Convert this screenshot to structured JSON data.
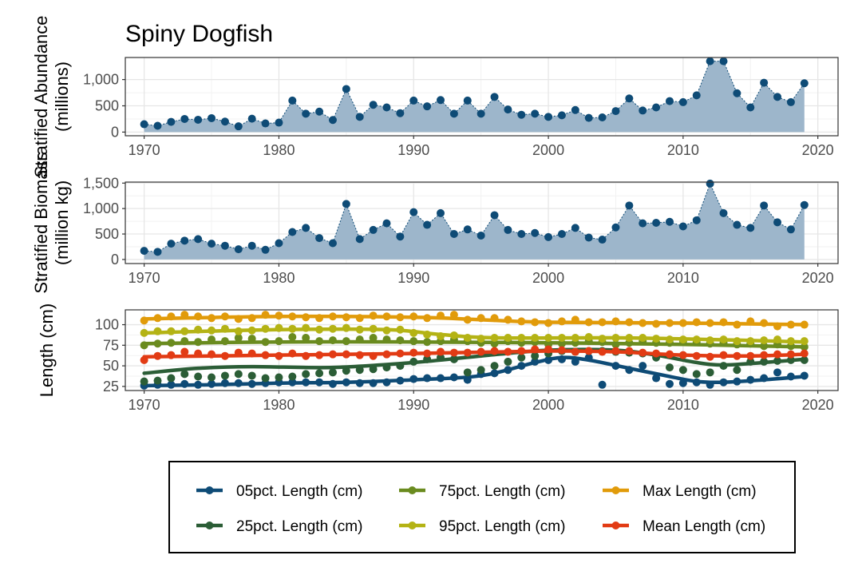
{
  "chart_data": {
    "title": "Spiny Dogfish",
    "panels": [
      {
        "type": "area",
        "ylabel_lines": [
          "Stratified Abundance",
          "(millions)"
        ],
        "x_ticks": [
          1970,
          1980,
          1990,
          2000,
          2010,
          2020
        ],
        "y_ticks": [
          0,
          500,
          1000
        ],
        "y_tick_labels": [
          "0",
          "500",
          "1,000"
        ],
        "xlim": [
          1968.6,
          2021.5
        ],
        "ylim": [
          -70,
          1420
        ],
        "x": [
          1970,
          1971,
          1972,
          1973,
          1974,
          1975,
          1976,
          1977,
          1978,
          1979,
          1980,
          1981,
          1982,
          1983,
          1984,
          1985,
          1986,
          1987,
          1988,
          1989,
          1990,
          1991,
          1992,
          1993,
          1994,
          1995,
          1996,
          1997,
          1998,
          1999,
          2000,
          2001,
          2002,
          2003,
          2004,
          2005,
          2006,
          2007,
          2008,
          2009,
          2010,
          2011,
          2012,
          2013,
          2014,
          2015,
          2016,
          2017,
          2018,
          2019
        ],
        "values": [
          150,
          120,
          195,
          250,
          235,
          265,
          200,
          110,
          255,
          165,
          180,
          600,
          350,
          390,
          230,
          820,
          290,
          520,
          470,
          360,
          600,
          490,
          610,
          350,
          600,
          350,
          670,
          430,
          330,
          350,
          290,
          320,
          420,
          270,
          280,
          400,
          640,
          410,
          470,
          590,
          570,
          700,
          1350,
          1350,
          740,
          470,
          940,
          670,
          570,
          930
        ]
      },
      {
        "type": "area",
        "ylabel_lines": [
          "Stratified Biomass",
          "(million kg)"
        ],
        "x_ticks": [
          1970,
          1980,
          1990,
          2000,
          2010,
          2020
        ],
        "y_ticks": [
          0,
          500,
          1000,
          1500
        ],
        "y_tick_labels": [
          "0",
          "500",
          "1,000",
          "1,500"
        ],
        "xlim": [
          1968.6,
          2021.5
        ],
        "ylim": [
          -80,
          1520
        ],
        "x": [
          1970,
          1971,
          1972,
          1973,
          1974,
          1975,
          1976,
          1977,
          1978,
          1979,
          1980,
          1981,
          1982,
          1983,
          1984,
          1985,
          1986,
          1987,
          1988,
          1989,
          1990,
          1991,
          1992,
          1993,
          1994,
          1995,
          1996,
          1997,
          1998,
          1999,
          2000,
          2001,
          2002,
          2003,
          2004,
          2005,
          2006,
          2007,
          2008,
          2009,
          2010,
          2011,
          2012,
          2013,
          2014,
          2015,
          2016,
          2017,
          2018,
          2019
        ],
        "values": [
          170,
          150,
          310,
          370,
          400,
          310,
          270,
          200,
          270,
          190,
          320,
          540,
          620,
          420,
          320,
          1090,
          400,
          580,
          710,
          450,
          930,
          680,
          910,
          500,
          590,
          470,
          870,
          580,
          500,
          520,
          440,
          500,
          620,
          430,
          390,
          630,
          1060,
          710,
          720,
          740,
          650,
          770,
          1490,
          910,
          680,
          620,
          1060,
          730,
          590,
          1070
        ]
      },
      {
        "type": "line",
        "ylabel_lines": [
          "Length (cm)"
        ],
        "x_ticks": [
          1970,
          1980,
          1990,
          2000,
          2010,
          2020
        ],
        "y_ticks": [
          25,
          50,
          75,
          100
        ],
        "y_tick_labels": [
          "25",
          "50",
          "75",
          "100"
        ],
        "xlim": [
          1968.6,
          2021.5
        ],
        "ylim": [
          20,
          118
        ],
        "x": [
          1970,
          1971,
          1972,
          1973,
          1974,
          1975,
          1976,
          1977,
          1978,
          1979,
          1980,
          1981,
          1982,
          1983,
          1984,
          1985,
          1986,
          1987,
          1988,
          1989,
          1990,
          1991,
          1992,
          1993,
          1994,
          1995,
          1996,
          1997,
          1998,
          1999,
          2000,
          2001,
          2002,
          2003,
          2004,
          2005,
          2006,
          2007,
          2008,
          2009,
          2010,
          2011,
          2012,
          2013,
          2014,
          2015,
          2016,
          2017,
          2018,
          2019
        ],
        "series": [
          {
            "name": "05pct. Length (cm)",
            "color": "#0e4b76",
            "points": [
              26,
              27,
              27,
              28,
              27,
              28,
              29,
              29,
              28,
              29,
              30,
              30,
              30,
              30,
              28,
              30,
              29,
              29,
              30,
              32,
              34,
              35,
              35,
              36,
              33,
              40,
              41,
              45,
              50,
              55,
              57,
              58,
              55,
              60,
              27,
              50,
              45,
              50,
              35,
              28,
              29,
              30,
              27,
              30,
              31,
              33,
              35,
              42,
              37,
              38
            ],
            "trend": [
              [
                1970,
                26
              ],
              [
                1975,
                27
              ],
              [
                1980,
                29
              ],
              [
                1985,
                30
              ],
              [
                1990,
                33
              ],
              [
                1995,
                38
              ],
              [
                1999,
                54
              ],
              [
                2001,
                60
              ],
              [
                2003,
                57
              ],
              [
                2006,
                47
              ],
              [
                2009,
                37
              ],
              [
                2011,
                31
              ],
              [
                2013,
                30
              ],
              [
                2016,
                33
              ],
              [
                2019,
                37
              ]
            ]
          },
          {
            "name": "25pct. Length (cm)",
            "color": "#2b5d36",
            "points": [
              31,
              32,
              35,
              40,
              37,
              36,
              38,
              40,
              38,
              35,
              36,
              37,
              40,
              41,
              42,
              44,
              45,
              46,
              48,
              50,
              55,
              58,
              60,
              58,
              42,
              45,
              50,
              55,
              60,
              62,
              65,
              68,
              67,
              68,
              68,
              67,
              66,
              65,
              60,
              48,
              45,
              40,
              42,
              50,
              45,
              55,
              55,
              56,
              57,
              57
            ],
            "trend": [
              [
                1970,
                41
              ],
              [
                1974,
                47
              ],
              [
                1978,
                49
              ],
              [
                1984,
                48
              ],
              [
                1990,
                54
              ],
              [
                1995,
                62
              ],
              [
                2000,
                69
              ],
              [
                2005,
                69
              ],
              [
                2008,
                63
              ],
              [
                2011,
                54
              ],
              [
                2013,
                51
              ],
              [
                2016,
                54
              ],
              [
                2019,
                58
              ]
            ]
          },
          {
            "name": "75pct. Length (cm)",
            "color": "#6a8b1f",
            "points": [
              75,
              77,
              78,
              80,
              79,
              82,
              80,
              84,
              83,
              79,
              80,
              85,
              84,
              80,
              81,
              80,
              82,
              84,
              82,
              81,
              80,
              79,
              80,
              82,
              80,
              78,
              77,
              80,
              78,
              79,
              76,
              77,
              78,
              80,
              79,
              76,
              78,
              80,
              78,
              78,
              80,
              79,
              77,
              78,
              76,
              77,
              74,
              76,
              74,
              73
            ],
            "trend": [
              [
                1970,
                77
              ],
              [
                1980,
                79
              ],
              [
                1990,
                79
              ],
              [
                2000,
                78
              ],
              [
                2010,
                76
              ],
              [
                2019,
                73
              ]
            ]
          },
          {
            "name": "95pct. Length (cm)",
            "color": "#b4b315",
            "points": [
              90,
              92,
              92,
              92,
              94,
              93,
              95,
              92,
              93,
              95,
              96,
              95,
              96,
              94,
              95,
              96,
              94,
              95,
              93,
              94,
              90,
              88,
              86,
              87,
              84,
              83,
              84,
              84,
              84,
              84,
              84,
              84,
              84,
              85,
              83,
              84,
              84,
              84,
              83,
              82,
              82,
              82,
              81,
              82,
              80,
              80,
              81,
              82,
              80,
              80
            ],
            "trend": [
              [
                1970,
                90
              ],
              [
                1980,
                94
              ],
              [
                1988,
                94
              ],
              [
                1992,
                88
              ],
              [
                1996,
                84
              ],
              [
                2005,
                84
              ],
              [
                2012,
                82
              ],
              [
                2019,
                79
              ]
            ]
          },
          {
            "name": "Max Length (cm)",
            "color": "#e19b0a",
            "points": [
              105,
              108,
              110,
              112,
              110,
              108,
              110,
              107,
              108,
              112,
              111,
              110,
              109,
              108,
              110,
              109,
              108,
              111,
              110,
              109,
              110,
              108,
              111,
              112,
              106,
              108,
              108,
              106,
              104,
              103,
              102,
              104,
              106,
              103,
              103,
              104,
              103,
              102,
              101,
              102,
              102,
              103,
              102,
              103,
              100,
              104,
              102,
              98,
              100,
              100
            ],
            "trend": [
              [
                1970,
                107
              ],
              [
                1980,
                110
              ],
              [
                1990,
                109
              ],
              [
                1995,
                106
              ],
              [
                2000,
                103
              ],
              [
                2010,
                102
              ],
              [
                2019,
                100
              ]
            ]
          },
          {
            "name": "Mean Length (cm)",
            "color": "#e23b14",
            "points": [
              57,
              62,
              63,
              67,
              65,
              64,
              62,
              66,
              65,
              63,
              62,
              65,
              62,
              63,
              64,
              64,
              63,
              62,
              64,
              65,
              66,
              65,
              67,
              66,
              66,
              67,
              68,
              67,
              68,
              70,
              70,
              69,
              67,
              68,
              67,
              68,
              68,
              66,
              65,
              64,
              63,
              62,
              61,
              63,
              62,
              62,
              63,
              64,
              64,
              65
            ],
            "trend": [
              [
                1970,
                61
              ],
              [
                1980,
                63
              ],
              [
                1990,
                65
              ],
              [
                2000,
                68
              ],
              [
                2005,
                67
              ],
              [
                2010,
                63
              ],
              [
                2015,
                62
              ],
              [
                2019,
                64
              ]
            ]
          }
        ]
      }
    ],
    "legend": {
      "position": "bottom",
      "items": [
        {
          "label": "05pct. Length (cm)",
          "color": "#0e4b76"
        },
        {
          "label": "75pct. Length (cm)",
          "color": "#6a8b1f"
        },
        {
          "label": "Max Length (cm)",
          "color": "#e19b0a"
        },
        {
          "label": "25pct. Length (cm)",
          "color": "#2b5d36"
        },
        {
          "label": "95pct. Length (cm)",
          "color": "#b4b315"
        },
        {
          "label": "Mean Length (cm)",
          "color": "#e23b14"
        }
      ]
    },
    "colors": {
      "area_fill": "#9db6cb",
      "area_point": "#0e4b76",
      "grid": "#e6e6e6",
      "panel_border": "#333333"
    }
  }
}
